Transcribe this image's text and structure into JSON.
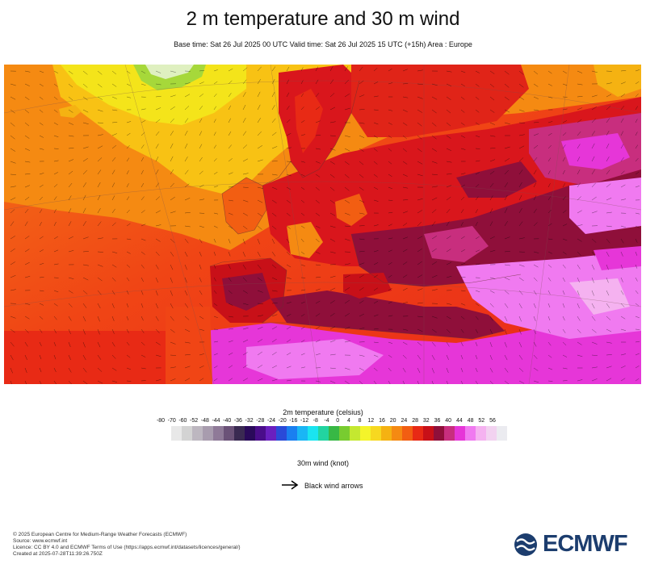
{
  "title": "2 m temperature and 30 m wind",
  "subtitle": "Base time: Sat 26 Jul 2025 00 UTC Valid time: Sat 26 Jul 2025 15 UTC (+15h) Area : Europe",
  "map": {
    "area": "Europe",
    "colors": {
      "ocean_warm": "#f04515",
      "ocean_cool": "#f57a18",
      "north_atlantic": "#f8b012",
      "arctic": "#f4e41a",
      "greenland": "#a6d83a",
      "land_hot": "#d9161c",
      "very_hot": "#8f0f3a",
      "desert": "#e636d8",
      "desert_light": "#f07af0"
    }
  },
  "legend": {
    "temperature_title": "2m temperature (celsius)",
    "ticks": [
      "-80",
      "-70",
      "-60",
      "-52",
      "-48",
      "-44",
      "-40",
      "-36",
      "-32",
      "-28",
      "-24",
      "-20",
      "-16",
      "-12",
      "-8",
      "-4",
      "0",
      "4",
      "8",
      "12",
      "16",
      "20",
      "24",
      "28",
      "32",
      "36",
      "40",
      "44",
      "48",
      "52",
      "56"
    ],
    "colors": [
      "#e8e8e8",
      "#d3d3d3",
      "#bdb7c0",
      "#a89cae",
      "#8f7a98",
      "#6b5278",
      "#3a2a52",
      "#2a0a5a",
      "#4a0d8a",
      "#6a1fbf",
      "#2a4ad8",
      "#1a7ff0",
      "#1ab6f5",
      "#1ae4f0",
      "#22d4a0",
      "#38b845",
      "#78cc30",
      "#c4e830",
      "#f4f42a",
      "#f7d820",
      "#f5b212",
      "#f58a12",
      "#f25e12",
      "#e82a15",
      "#c81018",
      "#8f0f3a",
      "#c82e7e",
      "#e636d8",
      "#f07af0",
      "#f5b2f0",
      "#f2d2f0",
      "#ebebf0"
    ],
    "wind_title": "30m wind (knot)",
    "wind_item": "Black wind arrows"
  },
  "footer": {
    "lines": [
      "© 2025 European Centre for Medium-Range Weather Forecasts (ECMWF)",
      "Source: www.ecmwf.int",
      "Licence: CC BY 4.0 and ECMWF Terms of Use (https://apps.ecmwf.int/datasets/licences/general/)",
      "Created at 2025-07-28T11:39:26.750Z"
    ]
  },
  "logo": {
    "text": "ECMWF",
    "color": "#1c3d6e"
  }
}
